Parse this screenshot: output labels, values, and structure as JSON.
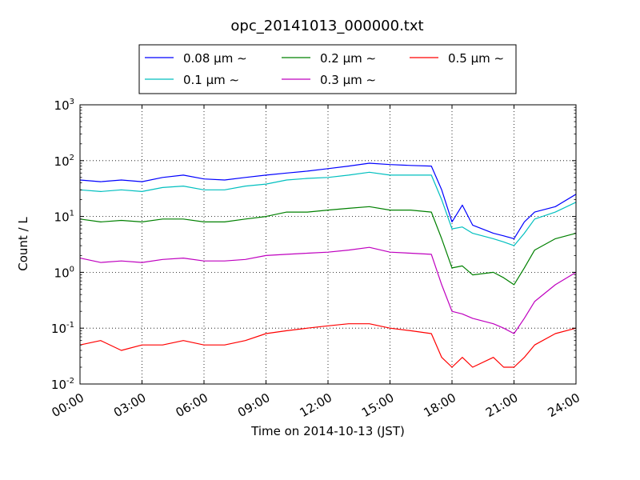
{
  "chart_data": {
    "type": "line",
    "title": "opc_20141013_000000.txt",
    "xlabel": "Time on 2014-10-13 (JST)",
    "ylabel": "Count / L",
    "x_unit": "hours",
    "xlim": [
      0,
      24
    ],
    "ylim": [
      0.01,
      1000
    ],
    "yscale": "log",
    "grid": true,
    "legend_position": "top",
    "x_tick_labels": [
      "00:00",
      "03:00",
      "06:00",
      "09:00",
      "12:00",
      "15:00",
      "18:00",
      "21:00",
      "24:00"
    ],
    "y_tick_labels": [
      {
        "base": "10",
        "exp": "-2"
      },
      {
        "base": "10",
        "exp": "-1"
      },
      {
        "base": "10",
        "exp": "0"
      },
      {
        "base": "10",
        "exp": "1"
      },
      {
        "base": "10",
        "exp": "2"
      },
      {
        "base": "10",
        "exp": "3"
      }
    ],
    "series": [
      {
        "name": "0.08 μm ∼",
        "color": "#0000ff",
        "x": [
          0,
          1,
          2,
          3,
          4,
          5,
          6,
          7,
          8,
          9,
          10,
          11,
          12,
          13,
          14,
          15,
          16,
          17,
          17.5,
          18,
          18.5,
          19,
          20,
          20.5,
          21,
          21.5,
          22,
          23,
          24
        ],
        "y": [
          45,
          42,
          45,
          42,
          50,
          55,
          47,
          45,
          50,
          55,
          60,
          65,
          72,
          80,
          90,
          85,
          82,
          80,
          30,
          8,
          16,
          7,
          5,
          4.5,
          4,
          8,
          12,
          15,
          25
        ]
      },
      {
        "name": "0.1 μm ∼",
        "color": "#00bfbf",
        "x": [
          0,
          1,
          2,
          3,
          4,
          5,
          6,
          7,
          8,
          9,
          10,
          11,
          12,
          13,
          14,
          15,
          16,
          17,
          17.5,
          18,
          18.5,
          19,
          20,
          20.5,
          21,
          21.5,
          22,
          23,
          24
        ],
        "y": [
          30,
          28,
          30,
          28,
          33,
          35,
          30,
          30,
          35,
          38,
          45,
          48,
          50,
          55,
          62,
          55,
          55,
          55,
          20,
          6,
          6.5,
          5,
          4,
          3.5,
          3,
          5,
          9,
          12,
          18
        ]
      },
      {
        "name": "0.2 μm ∼",
        "color": "#008000",
        "x": [
          0,
          1,
          2,
          3,
          4,
          5,
          6,
          7,
          8,
          9,
          10,
          11,
          12,
          13,
          14,
          15,
          16,
          17,
          17.5,
          18,
          18.5,
          19,
          20,
          20.5,
          21,
          21.5,
          22,
          23,
          24
        ],
        "y": [
          9,
          8,
          8.5,
          8,
          9,
          9,
          8,
          8,
          9,
          10,
          12,
          12,
          13,
          14,
          15,
          13,
          13,
          12,
          4,
          1.2,
          1.3,
          0.9,
          1.0,
          0.8,
          0.6,
          1.2,
          2.5,
          4,
          5
        ]
      },
      {
        "name": "0.3 μm ∼",
        "color": "#bf00bf",
        "x": [
          0,
          1,
          2,
          3,
          4,
          5,
          6,
          7,
          8,
          9,
          10,
          11,
          12,
          13,
          14,
          15,
          16,
          17,
          17.5,
          18,
          18.5,
          19,
          20,
          20.5,
          21,
          21.5,
          22,
          23,
          24
        ],
        "y": [
          1.8,
          1.5,
          1.6,
          1.5,
          1.7,
          1.8,
          1.6,
          1.6,
          1.7,
          2,
          2.1,
          2.2,
          2.3,
          2.5,
          2.8,
          2.3,
          2.2,
          2.1,
          0.6,
          0.2,
          0.18,
          0.15,
          0.12,
          0.1,
          0.08,
          0.15,
          0.3,
          0.6,
          1
        ]
      },
      {
        "name": "0.5 μm ∼",
        "color": "#ff0000",
        "x": [
          0,
          1,
          2,
          3,
          4,
          5,
          6,
          7,
          8,
          9,
          10,
          11,
          12,
          13,
          14,
          15,
          16,
          17,
          17.5,
          18,
          18.5,
          19,
          20,
          20.5,
          21,
          21.5,
          22,
          23,
          24
        ],
        "y": [
          0.05,
          0.06,
          0.04,
          0.05,
          0.05,
          0.06,
          0.05,
          0.05,
          0.06,
          0.08,
          0.09,
          0.1,
          0.11,
          0.12,
          0.12,
          0.1,
          0.09,
          0.08,
          0.03,
          0.02,
          0.03,
          0.02,
          0.03,
          0.02,
          0.02,
          0.03,
          0.05,
          0.08,
          0.1
        ]
      }
    ]
  }
}
